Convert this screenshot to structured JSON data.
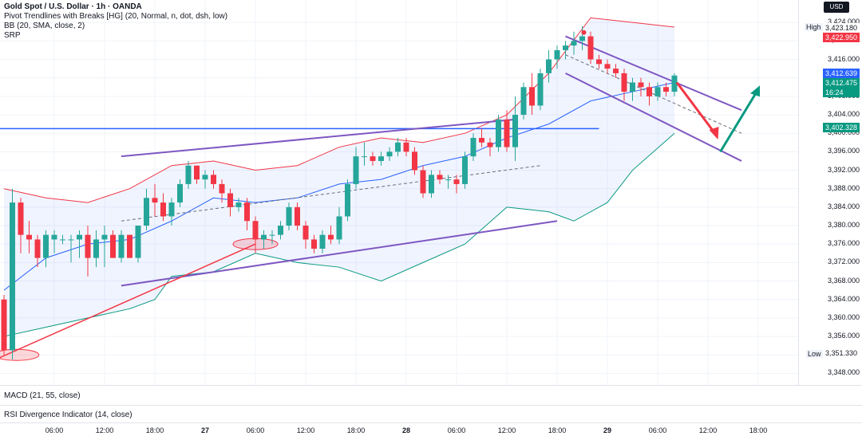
{
  "legend": {
    "title": "Gold Spot / U.S. Dollar · 1h · OANDA",
    "line2": "Pivot Trendlines with Breaks [HG] (20, Normal, n, dot, dsh, low)",
    "line3": "BB (20, SMA, close, 2)",
    "line4": "SRP"
  },
  "currency_button": "USD",
  "indicators": {
    "macd": "MACD (21, 55, close)",
    "rsi": "RSI Divergence Indicator (14, close)"
  },
  "price_labels": {
    "high_label": "High",
    "high_value": "3,423.180",
    "last_red": "3,422.950",
    "blue_tag": "3,412.639",
    "current": "3,412.475",
    "countdown": "16:24",
    "green_tag": "3,402.328",
    "low_label": "Low",
    "low_value": "3,351.330"
  },
  "colors": {
    "bull": "#26a69a",
    "bear": "#f23645",
    "bb_upper": "#f23645",
    "bb_basis": "#2962ff",
    "bb_lower": "#089981",
    "channel": "#7e57c2",
    "trendline_red": "#f23645",
    "hline_blue": "#2962ff",
    "arrow_red": "#f23645",
    "arrow_green": "#089981"
  },
  "chart_data": {
    "type": "candlestick",
    "symbol": "XAUUSD",
    "timeframe": "1h",
    "ylim": [
      3346,
      3428
    ],
    "y_ticks": [
      3348,
      3352,
      3356,
      3360,
      3364,
      3368,
      3372,
      3376,
      3380,
      3384,
      3388,
      3392,
      3396,
      3400,
      3404,
      3408,
      3412,
      3416,
      3420,
      3424
    ],
    "y_tick_labels": [
      "3,348.000",
      "3,352.000",
      "3,356.000",
      "3,360.000",
      "3,364.000",
      "3,368.000",
      "3,372.000",
      "3,376.000",
      "3,380.000",
      "3,384.000",
      "3,388.000",
      "3,392.000",
      "3,396.000",
      "3,400.000",
      "3,404.000",
      "3,408.000",
      "3,412.000",
      "3,416.000",
      "3,420.000",
      "3,424.000"
    ],
    "x_labels": [
      {
        "text": "06:00",
        "bar": 6,
        "bold": false
      },
      {
        "text": "12:00",
        "bar": 12,
        "bold": false
      },
      {
        "text": "18:00",
        "bar": 18,
        "bold": false
      },
      {
        "text": "27",
        "bar": 24,
        "bold": true
      },
      {
        "text": "06:00",
        "bar": 30,
        "bold": false
      },
      {
        "text": "12:00",
        "bar": 36,
        "bold": false
      },
      {
        "text": "18:00",
        "bar": 42,
        "bold": false
      },
      {
        "text": "28",
        "bar": 48,
        "bold": true
      },
      {
        "text": "06:00",
        "bar": 54,
        "bold": false
      },
      {
        "text": "12:00",
        "bar": 60,
        "bold": false
      },
      {
        "text": "18:00",
        "bar": 66,
        "bold": false
      },
      {
        "text": "29",
        "bar": 72,
        "bold": true
      },
      {
        "text": "06:00",
        "bar": 78,
        "bold": false
      },
      {
        "text": "12:00",
        "bar": 84,
        "bold": false
      },
      {
        "text": "18:00",
        "bar": 90,
        "bold": false
      }
    ],
    "candles": [
      {
        "o": 3364,
        "h": 3365,
        "l": 3352,
        "c": 3353
      },
      {
        "o": 3353,
        "h": 3388,
        "l": 3351,
        "c": 3385
      },
      {
        "o": 3385,
        "h": 3386,
        "l": 3374,
        "c": 3378
      },
      {
        "o": 3378,
        "h": 3381,
        "l": 3374,
        "c": 3377
      },
      {
        "o": 3377,
        "h": 3378,
        "l": 3371,
        "c": 3373
      },
      {
        "o": 3373,
        "h": 3379,
        "l": 3371,
        "c": 3378
      },
      {
        "o": 3377,
        "h": 3379,
        "l": 3374,
        "c": 3378
      },
      {
        "o": 3377,
        "h": 3378,
        "l": 3376,
        "c": 3377
      },
      {
        "o": 3377,
        "h": 3378,
        "l": 3372,
        "c": 3377
      },
      {
        "o": 3377,
        "h": 3379,
        "l": 3373,
        "c": 3378
      },
      {
        "o": 3378,
        "h": 3380,
        "l": 3369,
        "c": 3373
      },
      {
        "o": 3373,
        "h": 3379,
        "l": 3371,
        "c": 3377
      },
      {
        "o": 3377,
        "h": 3380,
        "l": 3371,
        "c": 3378
      },
      {
        "o": 3378,
        "h": 3379,
        "l": 3373,
        "c": 3373
      },
      {
        "o": 3373,
        "h": 3379,
        "l": 3372,
        "c": 3378
      },
      {
        "o": 3378,
        "h": 3378,
        "l": 3373,
        "c": 3373
      },
      {
        "o": 3373,
        "h": 3380,
        "l": 3372,
        "c": 3380
      },
      {
        "o": 3380,
        "h": 3388,
        "l": 3379,
        "c": 3386
      },
      {
        "o": 3386,
        "h": 3389,
        "l": 3382,
        "c": 3385
      },
      {
        "o": 3385,
        "h": 3387,
        "l": 3381,
        "c": 3382
      },
      {
        "o": 3382,
        "h": 3386,
        "l": 3380,
        "c": 3385
      },
      {
        "o": 3385,
        "h": 3390,
        "l": 3384,
        "c": 3389
      },
      {
        "o": 3389,
        "h": 3394,
        "l": 3388,
        "c": 3393
      },
      {
        "o": 3393,
        "h": 3393,
        "l": 3389,
        "c": 3390
      },
      {
        "o": 3390,
        "h": 3392,
        "l": 3388,
        "c": 3391
      },
      {
        "o": 3391,
        "h": 3392,
        "l": 3388,
        "c": 3389
      },
      {
        "o": 3389,
        "h": 3390,
        "l": 3385,
        "c": 3387
      },
      {
        "o": 3387,
        "h": 3388,
        "l": 3382,
        "c": 3384
      },
      {
        "o": 3384,
        "h": 3386,
        "l": 3383,
        "c": 3385
      },
      {
        "o": 3385,
        "h": 3386,
        "l": 3379,
        "c": 3381
      },
      {
        "o": 3381,
        "h": 3382,
        "l": 3374,
        "c": 3377
      },
      {
        "o": 3377,
        "h": 3379,
        "l": 3375,
        "c": 3378
      },
      {
        "o": 3378,
        "h": 3379,
        "l": 3376,
        "c": 3378
      },
      {
        "o": 3378,
        "h": 3381,
        "l": 3377,
        "c": 3380
      },
      {
        "o": 3380,
        "h": 3385,
        "l": 3379,
        "c": 3384
      },
      {
        "o": 3384,
        "h": 3385,
        "l": 3379,
        "c": 3380
      },
      {
        "o": 3380,
        "h": 3381,
        "l": 3375,
        "c": 3377
      },
      {
        "o": 3377,
        "h": 3378,
        "l": 3374,
        "c": 3375
      },
      {
        "o": 3375,
        "h": 3379,
        "l": 3374,
        "c": 3378
      },
      {
        "o": 3378,
        "h": 3380,
        "l": 3376,
        "c": 3377
      },
      {
        "o": 3377,
        "h": 3384,
        "l": 3376,
        "c": 3382
      },
      {
        "o": 3382,
        "h": 3390,
        "l": 3381,
        "c": 3389
      },
      {
        "o": 3389,
        "h": 3397,
        "l": 3388,
        "c": 3395
      },
      {
        "o": 3395,
        "h": 3398,
        "l": 3393,
        "c": 3395
      },
      {
        "o": 3395,
        "h": 3396,
        "l": 3393,
        "c": 3394
      },
      {
        "o": 3394,
        "h": 3396,
        "l": 3393,
        "c": 3395
      },
      {
        "o": 3395,
        "h": 3397,
        "l": 3394,
        "c": 3396
      },
      {
        "o": 3396,
        "h": 3399,
        "l": 3395,
        "c": 3398
      },
      {
        "o": 3398,
        "h": 3399,
        "l": 3395,
        "c": 3396
      },
      {
        "o": 3396,
        "h": 3397,
        "l": 3391,
        "c": 3392
      },
      {
        "o": 3392,
        "h": 3393,
        "l": 3386,
        "c": 3387
      },
      {
        "o": 3387,
        "h": 3392,
        "l": 3386,
        "c": 3391
      },
      {
        "o": 3391,
        "h": 3392,
        "l": 3389,
        "c": 3390
      },
      {
        "o": 3390,
        "h": 3391,
        "l": 3388,
        "c": 3390
      },
      {
        "o": 3390,
        "h": 3391,
        "l": 3387,
        "c": 3389
      },
      {
        "o": 3389,
        "h": 3396,
        "l": 3388,
        "c": 3395
      },
      {
        "o": 3395,
        "h": 3400,
        "l": 3394,
        "c": 3399
      },
      {
        "o": 3399,
        "h": 3401,
        "l": 3397,
        "c": 3398
      },
      {
        "o": 3398,
        "h": 3399,
        "l": 3395,
        "c": 3397
      },
      {
        "o": 3397,
        "h": 3404,
        "l": 3396,
        "c": 3403
      },
      {
        "o": 3403,
        "h": 3405,
        "l": 3396,
        "c": 3397
      },
      {
        "o": 3397,
        "h": 3408,
        "l": 3394,
        "c": 3404
      },
      {
        "o": 3404,
        "h": 3411,
        "l": 3403,
        "c": 3410
      },
      {
        "o": 3410,
        "h": 3413,
        "l": 3404,
        "c": 3406
      },
      {
        "o": 3406,
        "h": 3414,
        "l": 3405,
        "c": 3413
      },
      {
        "o": 3413,
        "h": 3418,
        "l": 3411,
        "c": 3416
      },
      {
        "o": 3416,
        "h": 3419,
        "l": 3414,
        "c": 3418
      },
      {
        "o": 3418,
        "h": 3420,
        "l": 3416,
        "c": 3419
      },
      {
        "o": 3419,
        "h": 3422,
        "l": 3417,
        "c": 3420
      },
      {
        "o": 3420,
        "h": 3423.2,
        "l": 3418,
        "c": 3421
      },
      {
        "o": 3421,
        "h": 3422,
        "l": 3415,
        "c": 3416
      },
      {
        "o": 3416,
        "h": 3417,
        "l": 3414,
        "c": 3415
      },
      {
        "o": 3415,
        "h": 3416,
        "l": 3413,
        "c": 3414
      },
      {
        "o": 3414,
        "h": 3415,
        "l": 3412,
        "c": 3413
      },
      {
        "o": 3413,
        "h": 3414,
        "l": 3407,
        "c": 3409
      },
      {
        "o": 3409,
        "h": 3412,
        "l": 3407,
        "c": 3411
      },
      {
        "o": 3411,
        "h": 3412,
        "l": 3408,
        "c": 3410
      },
      {
        "o": 3410,
        "h": 3411,
        "l": 3406,
        "c": 3408
      },
      {
        "o": 3408,
        "h": 3411,
        "l": 3407,
        "c": 3410
      },
      {
        "o": 3410,
        "h": 3411,
        "l": 3408,
        "c": 3409
      },
      {
        "o": 3409,
        "h": 3413,
        "l": 3408,
        "c": 3412.5
      }
    ],
    "bb": {
      "upper": [
        [
          0,
          3388
        ],
        [
          5,
          3386
        ],
        [
          10,
          3385
        ],
        [
          15,
          3388
        ],
        [
          20,
          3393
        ],
        [
          25,
          3394
        ],
        [
          30,
          3392
        ],
        [
          35,
          3393
        ],
        [
          40,
          3397
        ],
        [
          45,
          3399
        ],
        [
          50,
          3398
        ],
        [
          55,
          3400
        ],
        [
          60,
          3404
        ],
        [
          65,
          3413
        ],
        [
          70,
          3425
        ],
        [
          75,
          3424
        ],
        [
          80,
          3423
        ]
      ],
      "basis": [
        [
          0,
          3366
        ],
        [
          5,
          3373
        ],
        [
          10,
          3376
        ],
        [
          15,
          3377
        ],
        [
          20,
          3381
        ],
        [
          25,
          3386
        ],
        [
          30,
          3385
        ],
        [
          35,
          3386
        ],
        [
          40,
          3389
        ],
        [
          45,
          3390
        ],
        [
          50,
          3393
        ],
        [
          55,
          3395
        ],
        [
          60,
          3399
        ],
        [
          65,
          3402
        ],
        [
          70,
          3407
        ],
        [
          75,
          3409
        ],
        [
          80,
          3411
        ]
      ],
      "lower": [
        [
          0,
          3356
        ],
        [
          5,
          3358
        ],
        [
          10,
          3360
        ],
        [
          15,
          3362
        ],
        [
          18,
          3364
        ],
        [
          20,
          3369
        ],
        [
          25,
          3370
        ],
        [
          30,
          3374
        ],
        [
          35,
          3372
        ],
        [
          40,
          3371
        ],
        [
          45,
          3368
        ],
        [
          50,
          3372
        ],
        [
          55,
          3376
        ],
        [
          60,
          3384
        ],
        [
          65,
          3383
        ],
        [
          68,
          3381
        ],
        [
          72,
          3385
        ],
        [
          75,
          3392
        ],
        [
          80,
          3400
        ]
      ]
    },
    "channel_lines": [
      {
        "name": "",
        "points": [
          [
            14,
            3395
          ],
          [
            61,
            3403
          ]
        ]
      },
      {
        "name": "",
        "points": [
          [
            14,
            3367
          ],
          [
            66,
            3381
          ]
        ]
      },
      {
        "name": "",
        "points": [
          [
            67,
            3421
          ],
          [
            88,
            3405
          ]
        ]
      },
      {
        "name": "",
        "points": [
          [
            67,
            3413
          ],
          [
            88,
            3394
          ]
        ]
      }
    ],
    "dashed_midlines": [
      {
        "points": [
          [
            14,
            3381
          ],
          [
            64,
            3393
          ]
        ]
      },
      {
        "points": [
          [
            67,
            3417
          ],
          [
            88,
            3400
          ]
        ]
      }
    ],
    "red_trendline": {
      "points": [
        [
          -1,
          3351
        ],
        [
          30,
          3376
        ]
      ]
    },
    "horizontal_line": {
      "y": 3401,
      "x_end_bar": 71
    },
    "pivot_ellipses": [
      {
        "bar": 1.5,
        "price": 3352
      },
      {
        "bar": 30,
        "price": 3376
      }
    ]
  }
}
